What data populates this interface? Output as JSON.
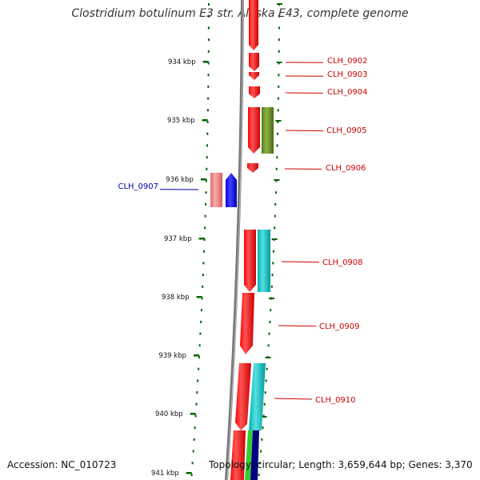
{
  "title": "Clostridium botulinum E3 str. Alaska E43, complete genome",
  "footer": {
    "accession": "Accession: NC_010723",
    "topology": "Topology: circular; Length: 3,659,644 bp; Genes: 3,370"
  },
  "scale_labels": [
    "934 kbp",
    "935 kbp",
    "936 kbp",
    "937 kbp",
    "938 kbp",
    "939 kbp",
    "940 kbp",
    "941 kbp"
  ],
  "gene_labels": [
    {
      "name": "CLH_0902",
      "color": "#cc0000"
    },
    {
      "name": "CLH_0903",
      "color": "#cc0000"
    },
    {
      "name": "CLH_0904",
      "color": "#cc0000"
    },
    {
      "name": "CLH_0905",
      "color": "#cc0000"
    },
    {
      "name": "CLH_0906",
      "color": "#cc0000"
    },
    {
      "name": "CLH_0907",
      "color": "#0000aa"
    },
    {
      "name": "CLH_0908",
      "color": "#cc0000"
    },
    {
      "name": "CLH_0909",
      "color": "#cc0000"
    },
    {
      "name": "CLH_0910",
      "color": "#cc0000"
    }
  ],
  "colors": {
    "forward_strand": "#ff0000",
    "reverse_strand": "#ff0000",
    "olive_feature": "#6b8e23",
    "cyan_feature": "#00c8c8",
    "blue_feature": "#0000ff",
    "pink_feature": "#f08080",
    "green_feature": "#33cc33",
    "navy_feature": "#000080",
    "backbone": "#808080",
    "ticks": "#006400"
  }
}
